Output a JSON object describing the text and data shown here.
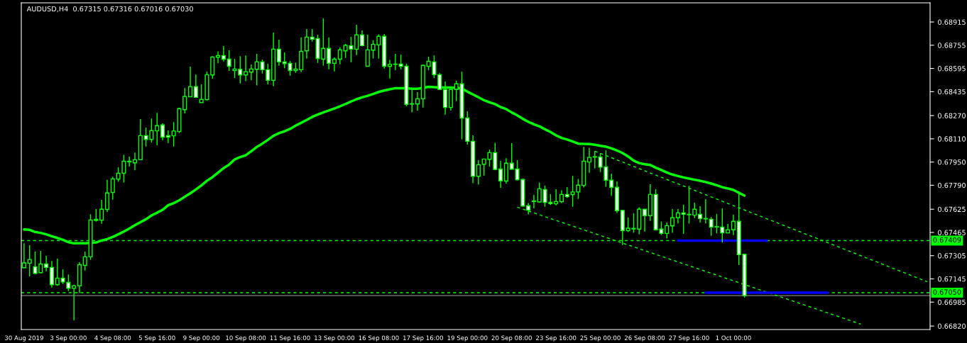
{
  "chart_data": {
    "type": "candlestick",
    "title": "AUDUSD,H4  0.67315 0.67316 0.67016 0.67030",
    "categories": [
      "30 Aug 2019",
      null,
      null,
      null,
      null,
      null,
      null,
      null,
      "3 Sep 00:00",
      null,
      null,
      null,
      null,
      null,
      null,
      null,
      "4 Sep 08:00",
      null,
      null,
      null,
      null,
      null,
      null,
      null,
      "5 Sep 16:00",
      null,
      null,
      null,
      null,
      null,
      null,
      null,
      "9 Sep 00:00",
      null,
      null,
      null,
      null,
      null,
      null,
      null,
      "10 Sep 08:00",
      null,
      null,
      null,
      null,
      null,
      null,
      null,
      "11 Sep 16:00",
      null,
      null,
      null,
      null,
      null,
      null,
      null,
      "13 Sep 00:00",
      null,
      null,
      null,
      null,
      null,
      null,
      null,
      "16 Sep 08:00",
      null,
      null,
      null,
      null,
      null,
      null,
      null,
      "17 Sep 16:00",
      null,
      null,
      null,
      null,
      null,
      null,
      null,
      "19 Sep 00:00",
      null,
      null,
      null,
      null,
      null,
      null,
      null,
      "20 Sep 08:00",
      null,
      null,
      null,
      null,
      null,
      null,
      null,
      "23 Sep 16:00",
      null,
      null,
      null,
      null,
      null,
      null,
      null,
      "25 Sep 00:00",
      null,
      null,
      null,
      null,
      null,
      null,
      null,
      "26 Sep 08:00",
      null,
      null,
      null,
      null,
      null,
      null,
      null,
      "27 Sep 16:00",
      null,
      null,
      null,
      null,
      null,
      null,
      null,
      "1 Oct 00:00",
      null,
      null,
      null,
      null,
      null,
      null,
      null,
      null,
      null,
      null,
      null,
      null,
      null,
      null,
      null,
      null,
      null,
      null,
      null,
      null,
      null,
      null,
      null,
      null,
      null,
      null,
      null,
      null,
      null,
      null,
      null,
      null,
      null,
      null,
      null
    ],
    "color": "#00ff00",
    "ohlc": [
      [
        0.67222,
        0.6739,
        0.67219,
        0.67255
      ],
      [
        0.67253,
        0.67377,
        0.67162,
        0.67279
      ],
      [
        0.67229,
        0.67333,
        0.67178,
        0.67183
      ],
      [
        0.67188,
        0.67338,
        0.67183,
        0.67248
      ],
      [
        0.67248,
        0.67304,
        0.67198,
        0.67224
      ],
      [
        0.67224,
        0.67269,
        0.67085,
        0.67105
      ],
      [
        0.67105,
        0.67284,
        0.67097,
        0.6715
      ],
      [
        0.6715,
        0.67211,
        0.6711,
        0.67124
      ],
      [
        0.67121,
        0.67175,
        0.67061,
        0.6708
      ],
      [
        0.6708,
        0.67105,
        0.6686,
        0.67097
      ],
      [
        0.67097,
        0.6726,
        0.67048,
        0.67243
      ],
      [
        0.67238,
        0.67333,
        0.67203,
        0.67297
      ],
      [
        0.67297,
        0.6759,
        0.67276,
        0.67551
      ],
      [
        0.67555,
        0.67626,
        0.6754,
        0.67548
      ],
      [
        0.6755,
        0.6769,
        0.67525,
        0.67625
      ],
      [
        0.67623,
        0.67827,
        0.67605,
        0.67737
      ],
      [
        0.6774,
        0.67849,
        0.67691,
        0.67834
      ],
      [
        0.67832,
        0.67914,
        0.67814,
        0.67873
      ],
      [
        0.67873,
        0.68,
        0.67809,
        0.67956
      ],
      [
        0.67956,
        0.67987,
        0.67919,
        0.67951
      ],
      [
        0.67945,
        0.68016,
        0.67894,
        0.67966
      ],
      [
        0.67966,
        0.68246,
        0.67966,
        0.68132
      ],
      [
        0.68132,
        0.68188,
        0.68057,
        0.68106
      ],
      [
        0.68106,
        0.6825,
        0.68085,
        0.68167
      ],
      [
        0.68165,
        0.68289,
        0.68065,
        0.68201
      ],
      [
        0.68206,
        0.68217,
        0.68101,
        0.68122
      ],
      [
        0.68132,
        0.68168,
        0.68082,
        0.68122
      ],
      [
        0.68131,
        0.68225,
        0.68057,
        0.68164
      ],
      [
        0.6816,
        0.68325,
        0.6815,
        0.68318
      ],
      [
        0.68311,
        0.6846,
        0.68285,
        0.68401
      ],
      [
        0.684,
        0.68607,
        0.684,
        0.6847
      ],
      [
        0.6847,
        0.68552,
        0.68393,
        0.68396
      ],
      [
        0.6836,
        0.68485,
        0.6836,
        0.68382
      ],
      [
        0.6838,
        0.68573,
        0.68374,
        0.68552
      ],
      [
        0.6855,
        0.68679,
        0.68524,
        0.68674
      ],
      [
        0.68672,
        0.68713,
        0.68632,
        0.68684
      ],
      [
        0.68684,
        0.68749,
        0.68643,
        0.68659
      ],
      [
        0.68659,
        0.6872,
        0.68578,
        0.6861
      ],
      [
        0.6858,
        0.68661,
        0.68529,
        0.68591
      ],
      [
        0.68589,
        0.6868,
        0.68491,
        0.6855
      ],
      [
        0.6855,
        0.68685,
        0.68508,
        0.68573
      ],
      [
        0.6857,
        0.68622,
        0.68514,
        0.68591
      ],
      [
        0.68589,
        0.68695,
        0.68478,
        0.6864
      ],
      [
        0.6864,
        0.68656,
        0.6856,
        0.68586
      ],
      [
        0.68586,
        0.68627,
        0.68485,
        0.68513
      ],
      [
        0.68513,
        0.68842,
        0.68473,
        0.68728
      ],
      [
        0.68728,
        0.68793,
        0.68614,
        0.6864
      ],
      [
        0.6864,
        0.68705,
        0.68597,
        0.68628
      ],
      [
        0.6863,
        0.68646,
        0.68545,
        0.68581
      ],
      [
        0.68581,
        0.68635,
        0.68565,
        0.68591
      ],
      [
        0.68586,
        0.68809,
        0.6857,
        0.68713
      ],
      [
        0.68716,
        0.68866,
        0.68663,
        0.68811
      ],
      [
        0.68811,
        0.68866,
        0.6878,
        0.68796
      ],
      [
        0.68801,
        0.68827,
        0.68633,
        0.68664
      ],
      [
        0.68659,
        0.6894,
        0.68614,
        0.68733
      ],
      [
        0.68733,
        0.68809,
        0.68589,
        0.6863
      ],
      [
        0.6863,
        0.68671,
        0.68575,
        0.68659
      ],
      [
        0.68659,
        0.68741,
        0.68623,
        0.68723
      ],
      [
        0.68716,
        0.68764,
        0.68668,
        0.68754
      ],
      [
        0.68752,
        0.68813,
        0.68638,
        0.68728
      ],
      [
        0.68728,
        0.68896,
        0.68687,
        0.68826
      ],
      [
        0.68826,
        0.68857,
        0.68747,
        0.68752
      ],
      [
        0.6861,
        0.68827,
        0.6861,
        0.68723
      ],
      [
        0.68721,
        0.6879,
        0.68663,
        0.68762
      ],
      [
        0.68757,
        0.6883,
        0.68663,
        0.68816
      ],
      [
        0.68816,
        0.68832,
        0.68594,
        0.6861
      ],
      [
        0.6861,
        0.68654,
        0.68526,
        0.68623
      ],
      [
        0.68625,
        0.68695,
        0.68583,
        0.68623
      ],
      [
        0.68625,
        0.6869,
        0.68589,
        0.6861
      ],
      [
        0.6861,
        0.68627,
        0.68334,
        0.68347
      ],
      [
        0.68352,
        0.68452,
        0.68292,
        0.68349
      ],
      [
        0.6835,
        0.68432,
        0.68305,
        0.68386
      ],
      [
        0.68386,
        0.68622,
        0.68326,
        0.68616
      ],
      [
        0.6861,
        0.68676,
        0.68583,
        0.68644
      ],
      [
        0.6864,
        0.68685,
        0.68529,
        0.68552
      ],
      [
        0.68552,
        0.68562,
        0.68448,
        0.6845
      ],
      [
        0.6845,
        0.68505,
        0.68277,
        0.68326
      ],
      [
        0.68326,
        0.6845,
        0.68305,
        0.6845
      ],
      [
        0.6845,
        0.6851,
        0.6837,
        0.68489
      ],
      [
        0.68489,
        0.68573,
        0.68106,
        0.68253
      ],
      [
        0.68254,
        0.683,
        0.6807,
        0.68093
      ],
      [
        0.68093,
        0.68134,
        0.67804,
        0.67852
      ],
      [
        0.67852,
        0.67963,
        0.67794,
        0.67932
      ],
      [
        0.67935,
        0.67971,
        0.67857,
        0.67971
      ],
      [
        0.67969,
        0.68036,
        0.67919,
        0.68015
      ],
      [
        0.68015,
        0.68082,
        0.67894,
        0.67899
      ],
      [
        0.67902,
        0.67958,
        0.67773,
        0.6782
      ],
      [
        0.67819,
        0.67977,
        0.67802,
        0.67942
      ],
      [
        0.67942,
        0.6808,
        0.67897,
        0.67901
      ],
      [
        0.67902,
        0.67963,
        0.67823,
        0.67828
      ],
      [
        0.6783,
        0.67835,
        0.67642,
        0.67647
      ],
      [
        0.67649,
        0.67667,
        0.67589,
        0.67618
      ],
      [
        0.67682,
        0.67724,
        0.67631,
        0.67678
      ],
      [
        0.67675,
        0.67809,
        0.6767,
        0.67766
      ],
      [
        0.67761,
        0.67788,
        0.67642,
        0.67672
      ],
      [
        0.67673,
        0.67729,
        0.67654,
        0.67664
      ],
      [
        0.67662,
        0.67763,
        0.67652,
        0.67678
      ],
      [
        0.67677,
        0.67755,
        0.67667,
        0.67727
      ],
      [
        0.67727,
        0.67778,
        0.67703,
        0.67711
      ],
      [
        0.67726,
        0.67855,
        0.67642,
        0.67744
      ],
      [
        0.67744,
        0.67833,
        0.67696,
        0.67791
      ],
      [
        0.67789,
        0.68055,
        0.67775,
        0.67956
      ],
      [
        0.6795,
        0.68047,
        0.67876,
        0.67982
      ],
      [
        0.67987,
        0.68026,
        0.67906,
        0.67984
      ],
      [
        0.67985,
        0.68011,
        0.67881,
        0.67915
      ],
      [
        0.67917,
        0.68031,
        0.6778,
        0.67825
      ],
      [
        0.67825,
        0.6787,
        0.67716,
        0.67776
      ],
      [
        0.67776,
        0.67817,
        0.67599,
        0.67615
      ],
      [
        0.67617,
        0.67621,
        0.67378,
        0.67478
      ],
      [
        0.67478,
        0.67568,
        0.67468,
        0.67494
      ],
      [
        0.67493,
        0.67597,
        0.67463,
        0.67489
      ],
      [
        0.67488,
        0.67638,
        0.67452,
        0.67625
      ],
      [
        0.67625,
        0.67625,
        0.67471,
        0.67581
      ],
      [
        0.67581,
        0.67797,
        0.67545,
        0.67727
      ],
      [
        0.67727,
        0.67763,
        0.67483,
        0.67483
      ],
      [
        0.67488,
        0.6754,
        0.67447,
        0.67458
      ],
      [
        0.67458,
        0.67533,
        0.67423,
        0.67512
      ],
      [
        0.6751,
        0.67626,
        0.67462,
        0.67566
      ],
      [
        0.67566,
        0.67626,
        0.67527,
        0.676
      ],
      [
        0.676,
        0.67656,
        0.67455,
        0.6759
      ],
      [
        0.6759,
        0.67786,
        0.67527,
        0.67587
      ],
      [
        0.67584,
        0.6767,
        0.67564,
        0.67625
      ],
      [
        0.6759,
        0.67646,
        0.67532,
        0.67561
      ],
      [
        0.67561,
        0.67695,
        0.67527,
        0.67558
      ],
      [
        0.67556,
        0.67571,
        0.67442,
        0.67502
      ],
      [
        0.67505,
        0.67592,
        0.67458,
        0.67502
      ],
      [
        0.67502,
        0.67631,
        0.67396,
        0.67462
      ],
      [
        0.67462,
        0.67524,
        0.67462,
        0.67484
      ],
      [
        0.67483,
        0.67587,
        0.67447,
        0.67542
      ],
      [
        0.67542,
        0.67748,
        0.6724,
        0.67312
      ],
      [
        0.67315,
        0.67316,
        0.67016,
        0.6703
      ],
      null,
      null,
      null,
      null,
      null,
      null,
      null,
      null,
      null,
      null,
      null,
      null,
      null,
      null,
      null,
      null,
      null,
      null,
      null,
      null,
      null,
      null,
      null,
      null,
      null,
      null,
      null,
      null,
      null,
      null,
      null,
      null,
      null
    ],
    "series": [
      {
        "type": "line",
        "color": "#00ff00",
        "values": [
          0.67486,
          0.67483,
          0.67468,
          0.67462,
          0.67452,
          0.67439,
          0.67427,
          0.67414,
          0.67398,
          0.6739,
          0.6739,
          0.6739,
          0.67393,
          0.67396,
          0.67409,
          0.67419,
          0.67434,
          0.67452,
          0.67471,
          0.67492,
          0.67515,
          0.67536,
          0.67556,
          0.67582,
          0.67601,
          0.67621,
          0.67652,
          0.67667,
          0.67686,
          0.67711,
          0.67735,
          0.67761,
          0.67789,
          0.67821,
          0.67846,
          0.67877,
          0.67908,
          0.67932,
          0.67968,
          0.67984,
          0.67997,
          0.68025,
          0.68054,
          0.68077,
          0.68103,
          0.68131,
          0.68149,
          0.68162,
          0.68178,
          0.68201,
          0.6822,
          0.6824,
          0.68261,
          0.68277,
          0.68292,
          0.68305,
          0.68319,
          0.68334,
          0.6835,
          0.68367,
          0.68383,
          0.68396,
          0.68407,
          0.68419,
          0.68433,
          0.68443,
          0.68451,
          0.68459,
          0.68459,
          0.68459,
          0.68455,
          0.68455,
          0.68461,
          0.68468,
          0.68466,
          0.68464,
          0.68464,
          0.68464,
          0.68461,
          0.68456,
          0.68435,
          0.68416,
          0.68396,
          0.68376,
          0.68362,
          0.68349,
          0.68329,
          0.68315,
          0.68292,
          0.68272,
          0.68248,
          0.68227,
          0.6821,
          0.68196,
          0.68176,
          0.68157,
          0.68134,
          0.68116,
          0.68105,
          0.68092,
          0.68077,
          0.68075,
          0.68074,
          0.68069,
          0.68062,
          0.68056,
          0.68044,
          0.6803,
          0.68012,
          0.67989,
          0.6796,
          0.67943,
          0.67935,
          0.6793,
          0.67911,
          0.67895,
          0.67878,
          0.67864,
          0.67854,
          0.67844,
          0.67836,
          0.67828,
          0.67821,
          0.67812,
          0.67802,
          0.6779,
          0.67777,
          0.67768,
          0.67758,
          0.67738,
          0.67719,
          null,
          null,
          null,
          null,
          null,
          null,
          null,
          null,
          null,
          null,
          null,
          null,
          null,
          null,
          null,
          null,
          null,
          null,
          null,
          null,
          null,
          null,
          null,
          null,
          null,
          null,
          null,
          null,
          null,
          null,
          null,
          null,
          null
        ]
      },
      {
        "type": "line",
        "color": "#00ff00",
        "line_style": "dashed",
        "values": [
          null,
          null,
          null,
          null,
          null,
          null,
          null,
          null,
          null,
          null,
          null,
          null,
          null,
          null,
          null,
          null,
          null,
          null,
          null,
          null,
          null,
          null,
          null,
          null,
          null,
          null,
          null,
          null,
          null,
          null,
          null,
          null,
          null,
          null,
          null,
          null,
          null,
          null,
          null,
          null,
          null,
          null,
          null,
          null,
          null,
          null,
          null,
          null,
          null,
          null,
          null,
          null,
          null,
          null,
          null,
          null,
          null,
          null,
          null,
          null,
          null,
          null,
          null,
          null,
          null,
          null,
          null,
          null,
          null,
          null,
          null,
          null,
          null,
          null,
          null,
          null,
          null,
          null,
          null,
          null,
          null,
          null,
          null,
          null,
          null,
          null,
          null,
          null,
          null,
          null,
          null,
          null,
          null,
          null,
          null,
          null,
          null,
          null,
          null,
          null,
          null,
          null,
          null,
          0.68025,
          0.6801,
          0.67995,
          0.6798,
          0.67965,
          0.6795,
          0.67935,
          0.6792,
          0.67905,
          0.6789,
          0.67875,
          0.6786,
          0.67845,
          0.6783,
          0.67815,
          0.678,
          0.67785,
          0.6777,
          0.67755,
          0.6774,
          0.67725,
          0.6771,
          0.67695,
          0.6768,
          0.67665,
          0.6765,
          0.67635,
          0.6762,
          0.67605,
          0.6759,
          0.67575,
          0.6756,
          0.67545,
          0.6753,
          0.67515,
          0.675,
          0.67485,
          0.6747,
          0.67455,
          0.6744,
          0.67425,
          0.6741,
          0.67395,
          0.6738,
          0.67365,
          0.6735,
          0.67335,
          0.6732,
          0.67305,
          0.6729,
          0.67275,
          0.6726,
          0.67245,
          0.6723,
          0.67215,
          0.672,
          0.67185,
          0.6717,
          0.67155,
          0.6714,
          0.67125
        ]
      },
      {
        "type": "line",
        "color": "#00ff00",
        "line_style": "dashed",
        "values": [
          null,
          null,
          null,
          null,
          null,
          null,
          null,
          null,
          null,
          null,
          null,
          null,
          null,
          null,
          null,
          null,
          null,
          null,
          null,
          null,
          null,
          null,
          null,
          null,
          null,
          null,
          null,
          null,
          null,
          null,
          null,
          null,
          null,
          null,
          null,
          null,
          null,
          null,
          null,
          null,
          null,
          null,
          null,
          null,
          null,
          null,
          null,
          null,
          null,
          null,
          null,
          null,
          null,
          null,
          null,
          null,
          null,
          null,
          null,
          null,
          null,
          null,
          null,
          null,
          null,
          null,
          null,
          null,
          null,
          null,
          null,
          null,
          null,
          null,
          null,
          null,
          null,
          null,
          null,
          null,
          null,
          null,
          null,
          null,
          null,
          null,
          null,
          null,
          null,
          0.67639,
          0.67626,
          0.67613,
          0.676,
          0.67587,
          0.67574,
          0.67561,
          0.67548,
          0.67535,
          0.67522,
          0.67509,
          0.67496,
          0.67483,
          0.6747,
          0.67457,
          0.67444,
          0.67431,
          0.67418,
          0.67405,
          0.67392,
          0.67379,
          0.67366,
          0.67353,
          0.6734,
          0.67327,
          0.67314,
          0.67301,
          0.67288,
          0.67275,
          0.67262,
          0.67249,
          0.67236,
          0.67223,
          0.6721,
          0.67197,
          0.67184,
          0.67171,
          0.67158,
          0.67145,
          0.67132,
          0.67119,
          0.67106,
          0.67093,
          0.6708,
          0.67067,
          0.67054,
          0.67041,
          0.67028,
          0.67015,
          0.67002,
          0.66989,
          0.66976,
          0.66963,
          0.6695,
          0.66937,
          0.66924,
          0.66911,
          0.66898,
          0.66885,
          0.66872,
          0.66859,
          0.66846,
          0.66833,
          null,
          null,
          null,
          null,
          null,
          null,
          null,
          null,
          null,
          null,
          null,
          null
        ]
      },
      {
        "type": "line",
        "color": "#0000ff",
        "values": [
          null,
          null,
          null,
          null,
          null,
          null,
          null,
          null,
          null,
          null,
          null,
          null,
          null,
          null,
          null,
          null,
          null,
          null,
          null,
          null,
          null,
          null,
          null,
          null,
          null,
          null,
          null,
          null,
          null,
          null,
          null,
          null,
          null,
          null,
          null,
          null,
          null,
          null,
          null,
          null,
          null,
          null,
          null,
          null,
          null,
          null,
          null,
          null,
          null,
          null,
          null,
          null,
          null,
          null,
          null,
          null,
          null,
          null,
          null,
          null,
          null,
          null,
          null,
          null,
          null,
          null,
          null,
          null,
          null,
          null,
          null,
          null,
          null,
          null,
          null,
          null,
          null,
          null,
          null,
          null,
          null,
          null,
          null,
          null,
          null,
          null,
          null,
          null,
          null,
          null,
          null,
          null,
          null,
          null,
          null,
          null,
          null,
          null,
          null,
          null,
          null,
          null,
          null,
          null,
          null,
          null,
          null,
          null,
          null,
          null,
          null,
          null,
          null,
          null,
          null,
          null,
          null,
          null,
          0.67409,
          0.67409,
          0.67409,
          0.67409,
          0.67409,
          0.67409,
          0.67409,
          0.67409,
          0.67409,
          0.67409,
          0.67409,
          0.67409,
          0.67409,
          0.67409,
          0.67409,
          0.67409,
          0.67409,
          null,
          null,
          null,
          null,
          null,
          null,
          null,
          null,
          null,
          null,
          null,
          null,
          null,
          null,
          null,
          null,
          null,
          null,
          null,
          null,
          null,
          null,
          null,
          null,
          null,
          null,
          null,
          null,
          null
        ]
      },
      {
        "type": "line",
        "color": "#0000ff",
        "values": [
          null,
          null,
          null,
          null,
          null,
          null,
          null,
          null,
          null,
          null,
          null,
          null,
          null,
          null,
          null,
          null,
          null,
          null,
          null,
          null,
          null,
          null,
          null,
          null,
          null,
          null,
          null,
          null,
          null,
          null,
          null,
          null,
          null,
          null,
          null,
          null,
          null,
          null,
          null,
          null,
          null,
          null,
          null,
          null,
          null,
          null,
          null,
          null,
          null,
          null,
          null,
          null,
          null,
          null,
          null,
          null,
          null,
          null,
          null,
          null,
          null,
          null,
          null,
          null,
          null,
          null,
          null,
          null,
          null,
          null,
          null,
          null,
          null,
          null,
          null,
          null,
          null,
          null,
          null,
          null,
          null,
          null,
          null,
          null,
          null,
          null,
          null,
          null,
          null,
          null,
          null,
          null,
          null,
          null,
          null,
          null,
          null,
          null,
          null,
          null,
          null,
          null,
          null,
          null,
          null,
          null,
          null,
          null,
          null,
          null,
          null,
          null,
          null,
          null,
          null,
          null,
          null,
          null,
          null,
          null,
          null,
          null,
          null,
          0.6705,
          0.6705,
          0.6705,
          0.6705,
          0.6705,
          0.6705,
          0.6705,
          0.6705,
          0.6705,
          0.6705,
          0.6705,
          0.6705,
          0.6705,
          0.6705,
          0.6705,
          0.6705,
          0.6705,
          0.6705,
          0.6705,
          0.6705,
          0.6705,
          0.6705,
          0.6705,
          null,
          null,
          null,
          null,
          null,
          null,
          null,
          null,
          null,
          null,
          null,
          null,
          null,
          null,
          null,
          null,
          null,
          null
        ]
      }
    ],
    "ref_lines": [
      {
        "axis": "y",
        "value": 0.67409,
        "label": "0.67409",
        "color": "#00ff00",
        "line_style": "dashed"
      },
      {
        "axis": "y",
        "value": 0.6705,
        "label": "0.67050",
        "color": "#00ff00",
        "line_style": "dashed"
      },
      {
        "axis": "y",
        "value": 0.6703,
        "color": "#808080",
        "line_style": "solid"
      }
    ],
    "ylim": [
      0.66796,
      0.69047
    ],
    "yticks": [
      {
        "value": 0.6682,
        "label": "0.66820"
      },
      0.66985,
      0.67145,
      0.67305,
      0.67465,
      0.67625,
      {
        "value": 0.6779,
        "label": "0.67790"
      },
      {
        "value": 0.6795,
        "label": "0.67950"
      },
      {
        "value": 0.6811,
        "label": "0.68110"
      },
      {
        "value": 0.6827,
        "label": "0.68270"
      },
      0.68435,
      0.68595,
      0.68755,
      0.68915
    ],
    "grid": false,
    "legend": false
  }
}
